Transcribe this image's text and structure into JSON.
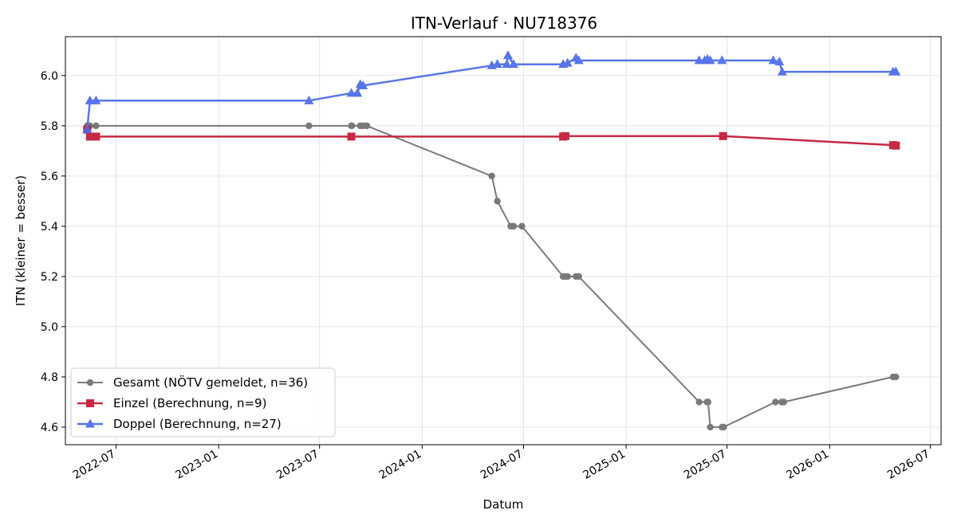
{
  "chart_data": {
    "type": "line",
    "title": "ITN-Verlauf · NU718376",
    "xlabel": "Datum",
    "ylabel": "ITN  (kleiner = besser)",
    "x_type": "date",
    "xlim": [
      "2022-04-01",
      "2026-07-20"
    ],
    "ylim": [
      4.53,
      6.155
    ],
    "grid": true,
    "legend_position": "lower-left",
    "x_ticks": [
      "2022-07",
      "2023-01",
      "2023-07",
      "2024-01",
      "2024-07",
      "2025-01",
      "2025-07",
      "2026-01",
      "2026-07"
    ],
    "y_ticks": [
      "4.6",
      "4.8",
      "5.0",
      "5.2",
      "5.4",
      "5.6",
      "5.8",
      "6.0"
    ],
    "series": [
      {
        "name": "Gesamt (NÖTV gemeldet, n=36)",
        "color": "#555555",
        "marker": "circle",
        "x": [
          "2022-05-10",
          "2022-05-15",
          "2022-05-26",
          "2023-06-12",
          "2023-08-27",
          "2023-08-28",
          "2023-09-12",
          "2023-09-17",
          "2023-09-24",
          "2024-05-05",
          "2024-05-15",
          "2024-06-08",
          "2024-06-13",
          "2024-06-28",
          "2024-09-10",
          "2024-09-14",
          "2024-09-18",
          "2024-10-03",
          "2024-10-08",
          "2025-05-12",
          "2025-05-26",
          "2025-05-28",
          "2025-06-01",
          "2025-06-22",
          "2025-06-24",
          "2025-06-25",
          "2025-09-26",
          "2025-10-07",
          "2025-10-11",
          "2026-04-25",
          "2026-04-30"
        ],
        "y": [
          5.8,
          5.8,
          5.8,
          5.8,
          5.8,
          5.8,
          5.8,
          5.8,
          5.8,
          5.6,
          5.5,
          5.4,
          5.4,
          5.4,
          5.2,
          5.2,
          5.2,
          5.2,
          5.2,
          4.7,
          4.7,
          4.7,
          4.6,
          4.6,
          4.6,
          4.6,
          4.7,
          4.7,
          4.7,
          4.8,
          4.8
        ]
      },
      {
        "name": "Einzel (Berechnung, n=9)",
        "color": "#c41e3a",
        "marker": "square",
        "x": [
          "2022-05-10",
          "2022-05-15",
          "2022-05-26",
          "2023-08-27",
          "2024-09-10",
          "2024-09-14",
          "2025-06-24",
          "2026-04-25",
          "2026-04-30"
        ],
        "y": [
          5.785,
          5.757,
          5.757,
          5.757,
          5.757,
          5.759,
          5.759,
          5.723,
          5.721
        ]
      },
      {
        "name": "Doppel (Berechnung, n=27)",
        "color": "#4a6ae8",
        "marker": "triangle",
        "x": [
          "2022-05-10",
          "2022-05-15",
          "2022-05-26",
          "2023-06-12",
          "2023-08-27",
          "2023-09-07",
          "2023-09-12",
          "2023-09-17",
          "2024-05-05",
          "2024-05-15",
          "2024-06-01",
          "2024-06-03",
          "2024-06-13",
          "2024-09-10",
          "2024-09-18",
          "2024-10-03",
          "2024-10-08",
          "2025-05-12",
          "2025-05-22",
          "2025-05-27",
          "2025-06-01",
          "2025-06-22",
          "2025-09-22",
          "2025-10-03",
          "2025-10-08",
          "2026-04-25",
          "2026-04-30"
        ],
        "y": [
          5.785,
          5.9,
          5.9,
          5.9,
          5.93,
          5.93,
          5.965,
          5.96,
          6.04,
          6.045,
          6.045,
          6.08,
          6.045,
          6.045,
          6.05,
          6.07,
          6.06,
          6.06,
          6.06,
          6.065,
          6.06,
          6.06,
          6.06,
          6.055,
          6.015,
          6.015,
          6.015
        ]
      }
    ]
  }
}
